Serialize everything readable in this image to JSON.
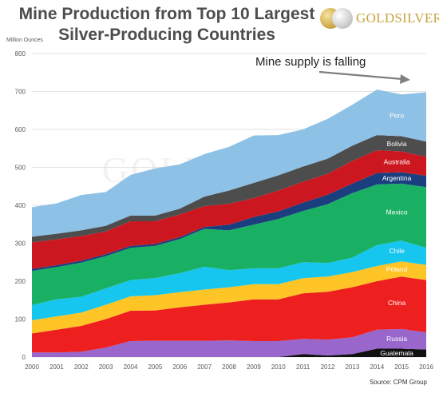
{
  "header": {
    "title_line1": "Mine Production from Top 10 Largest",
    "title_line2": "Silver-Producing  Countries",
    "logo_text": "GOLDSILVER"
  },
  "chart_data": {
    "type": "area",
    "stacked": true,
    "ylabel": "Million Ounces",
    "ylim": [
      0,
      800
    ],
    "yticks": [
      0,
      100,
      200,
      300,
      400,
      500,
      600,
      700,
      800
    ],
    "x": [
      2000,
      2001,
      2002,
      2003,
      2004,
      2005,
      2006,
      2007,
      2008,
      2009,
      2010,
      2011,
      2012,
      2013,
      2014,
      2015,
      2016
    ],
    "annotation": "Mine supply is falling",
    "source": "Source: CPM Group",
    "watermark": "GOLDSILVER",
    "series": [
      {
        "name": "Guatemala",
        "color": "#111111",
        "label_color": "#ffffff",
        "values": [
          0,
          0,
          0,
          0,
          0,
          0,
          0,
          0,
          0,
          0,
          0,
          8,
          4,
          8,
          22,
          22,
          20
        ]
      },
      {
        "name": "Russia",
        "color": "#9966cc",
        "label_color": "#ffffff",
        "values": [
          12,
          12,
          14,
          25,
          42,
          43,
          43,
          43,
          44,
          42,
          42,
          40,
          42,
          44,
          50,
          52,
          45
        ]
      },
      {
        "name": "China",
        "color": "#ee1f1f",
        "label_color": "#ffffff",
        "values": [
          50,
          60,
          68,
          75,
          80,
          80,
          88,
          95,
          100,
          110,
          110,
          120,
          126,
          132,
          128,
          138,
          138
        ]
      },
      {
        "name": "Poland",
        "color": "#ffc425",
        "label_color": "#ffffff",
        "values": [
          35,
          35,
          35,
          38,
          38,
          40,
          40,
          40,
          40,
          40,
          40,
          40,
          40,
          40,
          40,
          40,
          40
        ]
      },
      {
        "name": "Chile",
        "color": "#16c6ee",
        "label_color": "#ffffff",
        "values": [
          40,
          45,
          42,
          43,
          43,
          45,
          50,
          60,
          45,
          42,
          42,
          42,
          36,
          38,
          55,
          55,
          45
        ]
      },
      {
        "name": "Mexico",
        "color": "#1ab064",
        "label_color": "#ffffff",
        "values": [
          90,
          85,
          90,
          85,
          85,
          85,
          90,
          100,
          105,
          115,
          130,
          135,
          155,
          170,
          160,
          150,
          160
        ]
      },
      {
        "name": "Argentina",
        "color": "#1a3e7e",
        "label_color": "#ffffff",
        "values": [
          5,
          5,
          5,
          5,
          5,
          5,
          5,
          5,
          15,
          20,
          20,
          22,
          25,
          25,
          30,
          30,
          30
        ]
      },
      {
        "name": "Australia",
        "color": "#cc1720",
        "label_color": "#ffffff",
        "values": [
          70,
          68,
          65,
          60,
          65,
          60,
          60,
          55,
          55,
          50,
          55,
          55,
          55,
          60,
          60,
          55,
          50
        ]
      },
      {
        "name": "Bolivia",
        "color": "#4d4d4d",
        "label_color": "#ffffff",
        "values": [
          15,
          15,
          15,
          15,
          15,
          15,
          15,
          25,
          35,
          40,
          40,
          40,
          40,
          40,
          40,
          40,
          40
        ]
      },
      {
        "name": "Peru",
        "color": "#8ec1e6",
        "label_color": "#ffffff",
        "values": [
          78,
          80,
          93,
          89,
          107,
          124,
          117,
          112,
          115,
          125,
          106,
          98,
          105,
          108,
          120,
          110,
          130
        ]
      }
    ]
  },
  "colors": {
    "grid": "#d9d9d9",
    "axis_text": "#595959",
    "arrow": "#7f7f7f",
    "title": "#4d4d4d"
  }
}
